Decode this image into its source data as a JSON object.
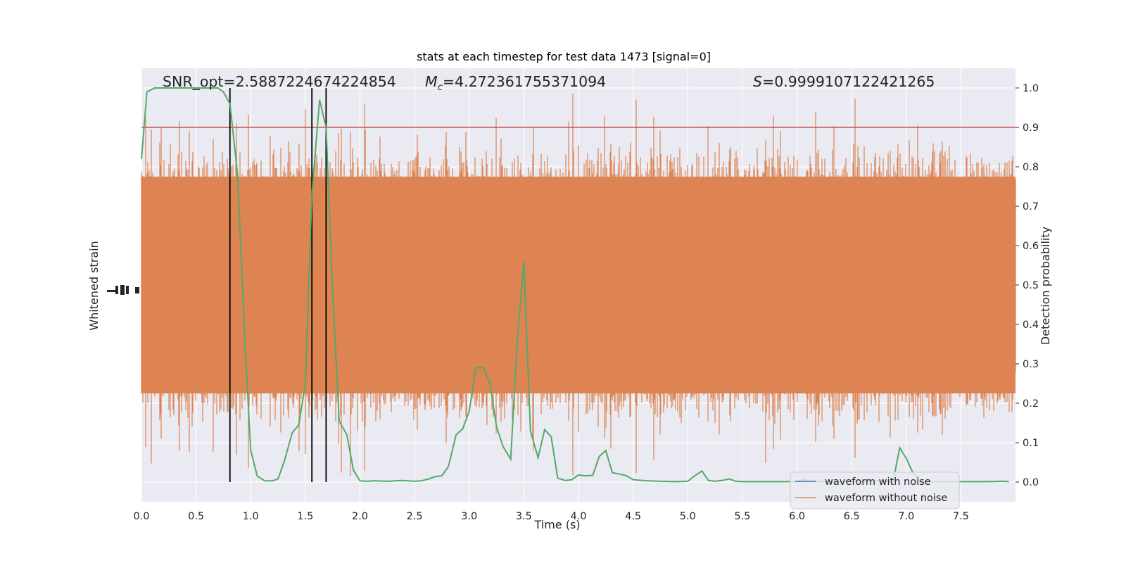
{
  "chart_data": {
    "type": "line",
    "title": "stats at each timestep for test data 1473 [signal=0]",
    "xlabel": "Time (s)",
    "ylabel_left": "Whitened strain",
    "ylabel_right": "Detection probability",
    "xlim": [
      0.0,
      8.0
    ],
    "ylim_right": [
      -0.05,
      1.05
    ],
    "x_ticks": [
      "0.0",
      "0.5",
      "1.0",
      "1.5",
      "2.0",
      "2.5",
      "3.0",
      "3.5",
      "4.0",
      "4.5",
      "5.0",
      "5.5",
      "6.0",
      "6.5",
      "7.0",
      "7.5"
    ],
    "y_ticks_right": [
      "0.0",
      "0.1",
      "0.2",
      "0.3",
      "0.4",
      "0.5",
      "0.6",
      "0.7",
      "0.8",
      "0.9",
      "1.0"
    ],
    "annotations": {
      "snr": "SNR_opt=2.5887224674224854",
      "mc_symbol": "M",
      "mc_sub": "c",
      "mc_value": "=4.272361755371094",
      "s_symbol": "S",
      "s_value": "=0.9999107122421265"
    },
    "threshold": {
      "value": 0.9,
      "color": "#c44e52"
    },
    "vertical_markers": [
      0.81,
      1.56,
      1.69
    ],
    "legend": {
      "position": "lower-right",
      "entries": [
        {
          "label": "waveform with noise",
          "color": "#4c72b0"
        },
        {
          "label": "waveform without noise",
          "color": "#dd8452"
        }
      ]
    },
    "noise_band": {
      "center": 0.0,
      "typical_halfwidth": 0.72,
      "max_halfwidth": 1.0
    },
    "probability_series": {
      "color": "#55a868",
      "x": [
        0.0,
        0.05,
        0.12,
        0.2,
        0.3,
        0.4,
        0.5,
        0.6,
        0.7,
        0.75,
        0.81,
        0.88,
        0.95,
        1.0,
        1.06,
        1.13,
        1.2,
        1.25,
        1.31,
        1.38,
        1.44,
        1.5,
        1.56,
        1.63,
        1.69,
        1.75,
        1.81,
        1.88,
        1.94,
        2.0,
        2.06,
        2.13,
        2.25,
        2.38,
        2.5,
        2.56,
        2.63,
        2.69,
        2.75,
        2.81,
        2.88,
        2.94,
        3.0,
        3.06,
        3.13,
        3.19,
        3.25,
        3.31,
        3.38,
        3.44,
        3.5,
        3.56,
        3.63,
        3.69,
        3.75,
        3.81,
        3.88,
        3.94,
        4.0,
        4.06,
        4.13,
        4.19,
        4.25,
        4.31,
        4.38,
        4.44,
        4.5,
        4.63,
        4.75,
        4.88,
        5.0,
        5.06,
        5.13,
        5.19,
        5.25,
        5.31,
        5.38,
        5.44,
        5.5,
        5.75,
        6.0,
        6.06,
        6.13,
        6.19,
        6.25,
        6.38,
        6.5,
        6.63,
        6.75,
        6.88,
        6.94,
        7.0,
        7.06,
        7.13,
        7.25,
        7.5,
        7.75,
        7.88,
        7.94
      ],
      "y": [
        0.82,
        0.99,
        1.0,
        1.0,
        1.0,
        1.0,
        1.0,
        1.0,
        1.0,
        0.99,
        0.96,
        0.78,
        0.34,
        0.08,
        0.015,
        0.003,
        0.003,
        0.008,
        0.055,
        0.125,
        0.145,
        0.25,
        0.73,
        0.97,
        0.9,
        0.48,
        0.155,
        0.12,
        0.03,
        0.003,
        0.002,
        0.003,
        0.002,
        0.004,
        0.002,
        0.003,
        0.008,
        0.014,
        0.016,
        0.04,
        0.12,
        0.135,
        0.18,
        0.29,
        0.29,
        0.25,
        0.14,
        0.09,
        0.058,
        0.36,
        0.56,
        0.13,
        0.062,
        0.133,
        0.115,
        0.01,
        0.004,
        0.006,
        0.018,
        0.016,
        0.017,
        0.065,
        0.08,
        0.024,
        0.02,
        0.016,
        0.006,
        0.003,
        0.002,
        0.001,
        0.002,
        0.015,
        0.028,
        0.004,
        0.002,
        0.004,
        0.008,
        0.002,
        0.001,
        0.001,
        0.001,
        0.007,
        0.001,
        0.002,
        0.001,
        0.001,
        0.002,
        0.002,
        0.003,
        0.002,
        0.087,
        0.06,
        0.024,
        0.001,
        0.001,
        0.001,
        0.001,
        0.002,
        0.001
      ]
    }
  }
}
